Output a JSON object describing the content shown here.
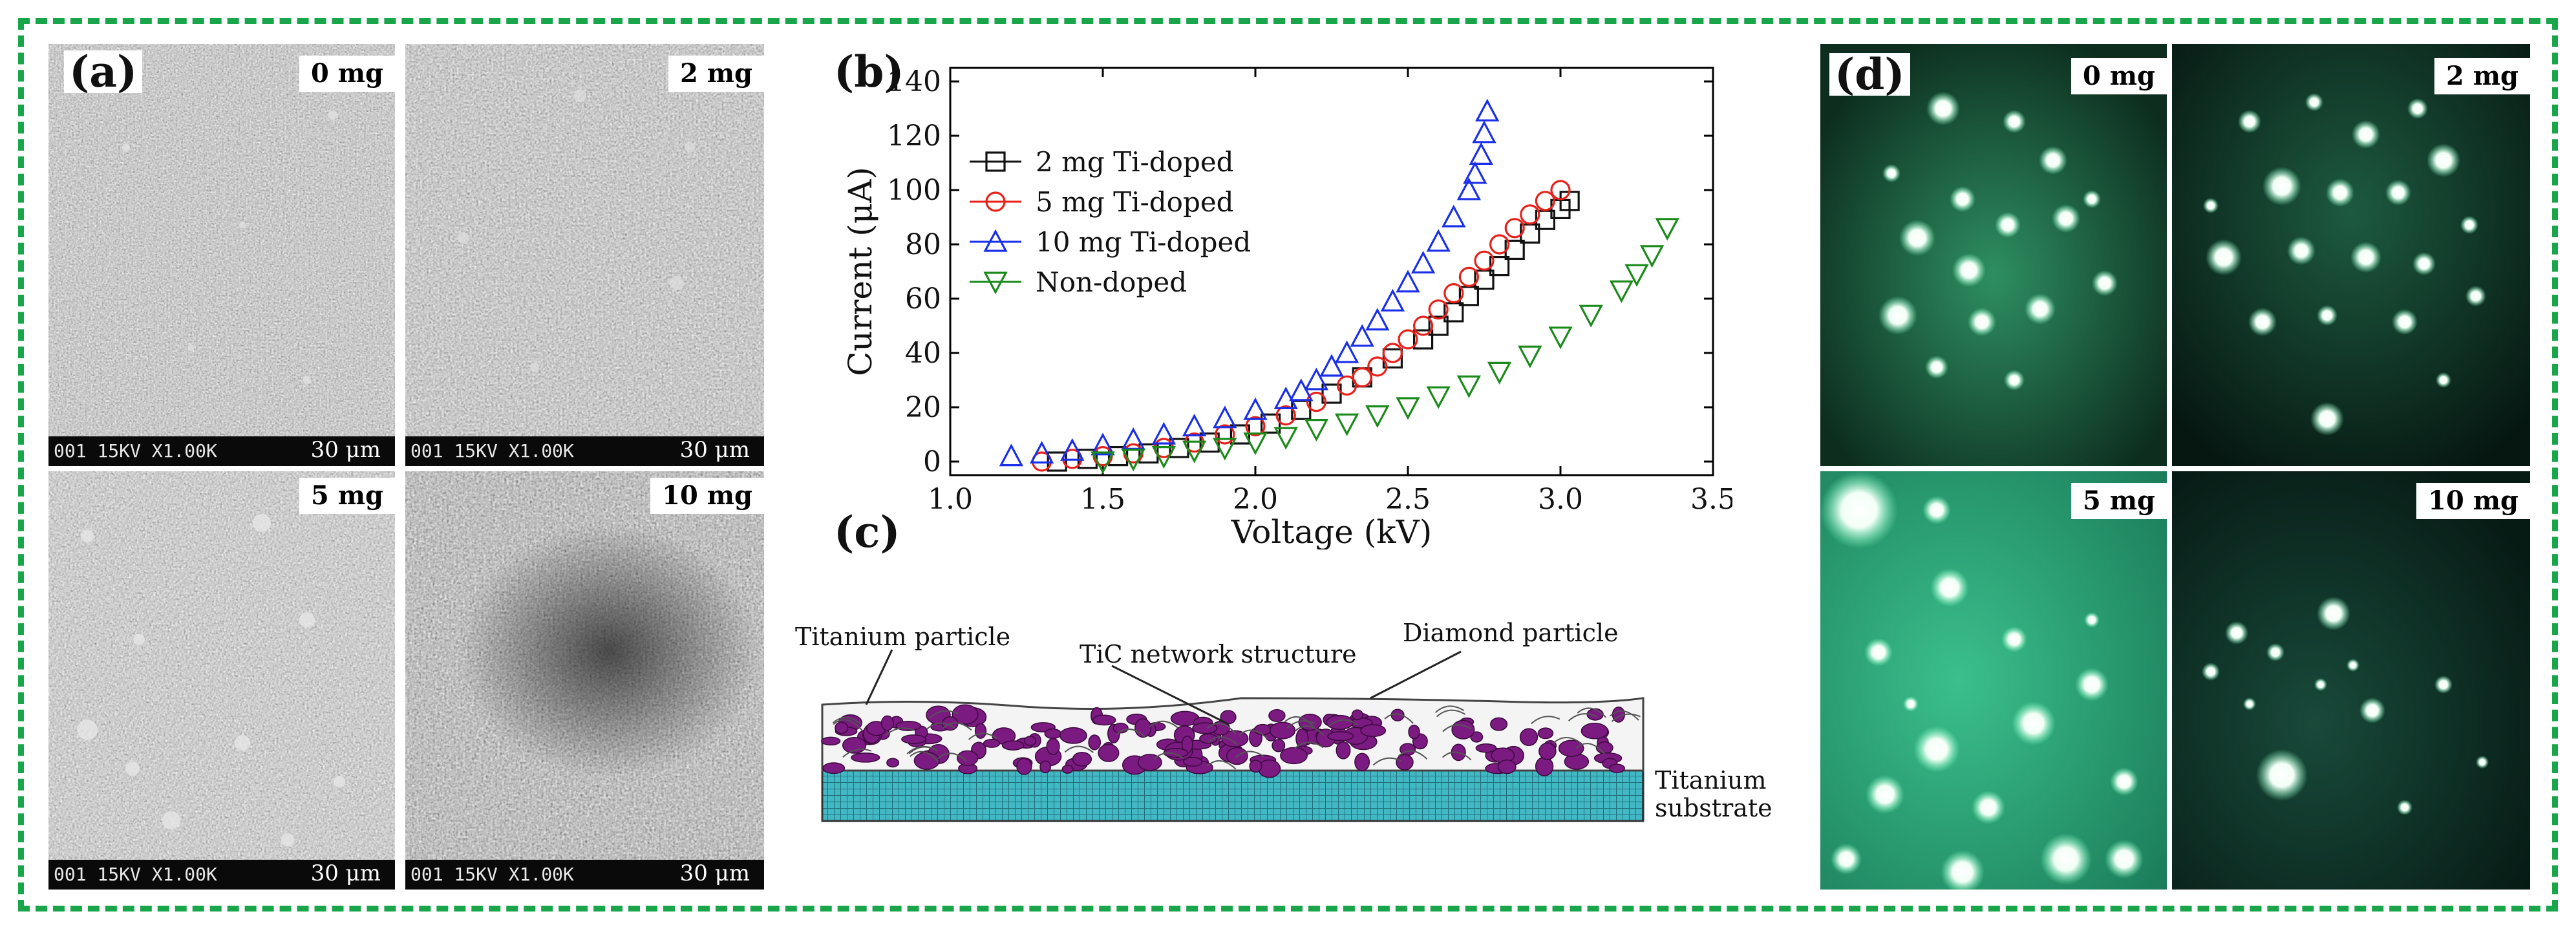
{
  "figure": {
    "panel_a": {
      "label": "(a)",
      "images": [
        {
          "tag": "0 mg",
          "sem_code": "001 15KV  X1.00K",
          "scale": "30 μm"
        },
        {
          "tag": "2 mg",
          "sem_code": "001 15KV  X1.00K",
          "scale": "30 μm"
        },
        {
          "tag": "5 mg",
          "sem_code": "001 15KV  X1.00K",
          "scale": "30 μm"
        },
        {
          "tag": "10 mg",
          "sem_code": "001 15KV  X1.00K",
          "scale": "30 μm"
        }
      ]
    },
    "panel_b": {
      "label": "(b)"
    },
    "panel_c": {
      "label": "(c)",
      "annotations": {
        "titanium_particle": "Titanium particle",
        "tic_network": "TiC network structure",
        "diamond_particle": "Diamond particle",
        "substrate_line1": "Titanium",
        "substrate_line2": "substrate"
      }
    },
    "panel_d": {
      "label": "(d)",
      "images": [
        {
          "tag": "0 mg"
        },
        {
          "tag": "2 mg"
        },
        {
          "tag": "5 mg"
        },
        {
          "tag": "10 mg"
        }
      ]
    }
  },
  "chart_data": {
    "type": "scatter",
    "title": "",
    "xlabel": "Voltage (kV)",
    "ylabel": "Current (μA)",
    "xlim": [
      1.0,
      3.5
    ],
    "ylim": [
      -5,
      145
    ],
    "xticks": [
      1.0,
      1.5,
      2.0,
      2.5,
      3.0,
      3.5
    ],
    "yticks": [
      0,
      20,
      40,
      60,
      80,
      100,
      120,
      140
    ],
    "legend_position": "upper-left",
    "series": [
      {
        "name": "2 mg Ti-doped",
        "marker": "square",
        "color": "#111111",
        "x": [
          1.35,
          1.45,
          1.55,
          1.65,
          1.75,
          1.85,
          1.95,
          2.05,
          2.15,
          2.25,
          2.35,
          2.45,
          2.55,
          2.6,
          2.65,
          2.7,
          2.75,
          2.8,
          2.85,
          2.9,
          2.95,
          3.0,
          3.03
        ],
        "y": [
          0,
          1,
          2,
          3,
          5,
          7,
          10,
          14,
          19,
          25,
          31,
          38,
          45,
          50,
          55,
          61,
          67,
          72,
          78,
          84,
          89,
          93,
          96
        ]
      },
      {
        "name": "5 mg Ti-doped",
        "marker": "circle",
        "color": "#e8201a",
        "x": [
          1.3,
          1.4,
          1.5,
          1.6,
          1.7,
          1.8,
          1.9,
          2.0,
          2.1,
          2.2,
          2.3,
          2.35,
          2.4,
          2.45,
          2.5,
          2.55,
          2.6,
          2.65,
          2.7,
          2.75,
          2.8,
          2.85,
          2.9,
          2.95,
          3.0
        ],
        "y": [
          0,
          1,
          2,
          3,
          5,
          7,
          10,
          13,
          17,
          22,
          28,
          31,
          35,
          40,
          45,
          50,
          56,
          62,
          68,
          74,
          80,
          86,
          91,
          96,
          100
        ]
      },
      {
        "name": "10 mg Ti-doped",
        "marker": "triangle-up",
        "color": "#1a2fe8",
        "x": [
          1.2,
          1.3,
          1.4,
          1.5,
          1.6,
          1.7,
          1.8,
          1.9,
          2.0,
          2.1,
          2.15,
          2.2,
          2.25,
          2.3,
          2.35,
          2.4,
          2.45,
          2.5,
          2.55,
          2.6,
          2.65,
          2.7,
          2.72,
          2.74,
          2.75,
          2.76
        ],
        "y": [
          2,
          3,
          4,
          6,
          8,
          10,
          13,
          16,
          19,
          23,
          26,
          30,
          35,
          40,
          46,
          52,
          59,
          66,
          73,
          81,
          90,
          100,
          106,
          113,
          121,
          129
        ]
      },
      {
        "name": "Non-doped",
        "marker": "triangle-down",
        "color": "#1a8a1a",
        "x": [
          1.5,
          1.6,
          1.7,
          1.8,
          1.9,
          2.0,
          2.1,
          2.2,
          2.3,
          2.4,
          2.5,
          2.6,
          2.7,
          2.8,
          2.9,
          3.0,
          3.1,
          3.2,
          3.25,
          3.3,
          3.35
        ],
        "y": [
          0,
          1,
          2,
          4,
          5,
          7,
          9,
          12,
          14,
          17,
          20,
          24,
          28,
          33,
          39,
          46,
          54,
          63,
          69,
          76,
          86
        ]
      }
    ]
  }
}
